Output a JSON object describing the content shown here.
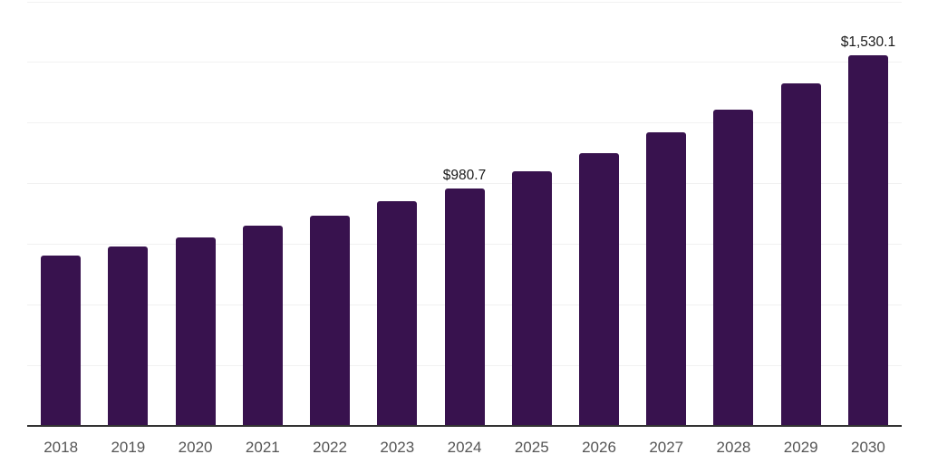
{
  "chart_data": {
    "type": "bar",
    "title": "",
    "xlabel": "",
    "ylabel": "",
    "categories": [
      "2018",
      "2019",
      "2020",
      "2021",
      "2022",
      "2023",
      "2024",
      "2025",
      "2026",
      "2027",
      "2028",
      "2029",
      "2030"
    ],
    "values": [
      702,
      739,
      779,
      825,
      868,
      926,
      980.7,
      1050,
      1125,
      1212,
      1305,
      1414,
      1530.1
    ],
    "point_labels": [
      "",
      "",
      "",
      "",
      "",
      "",
      "$980.7",
      "",
      "",
      "",
      "",
      "",
      "$1,530.1"
    ],
    "ylim": [
      0,
      1750
    ],
    "gridline_step": 250,
    "grid": "horizontal",
    "legend_position": "none",
    "y_axis_tick_labels_visible": false,
    "colors": {
      "bar": "#38124E",
      "point_label": "#1a1a1a",
      "tick_label": "#555555",
      "axis_line": "#333333",
      "gridline": "#f1f1f1",
      "background": "#ffffff"
    }
  }
}
